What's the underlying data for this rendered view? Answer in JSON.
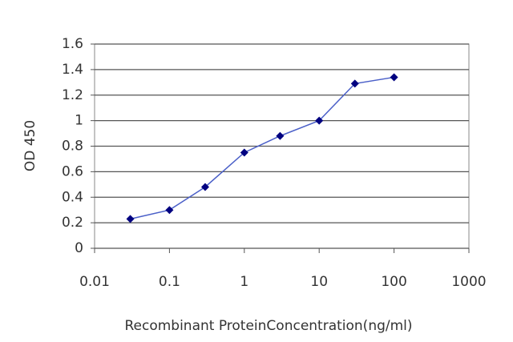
{
  "chart_data": {
    "type": "line",
    "x_label": "Recombinant ProteinConcentration(ng/ml)",
    "y_label": "OD 450",
    "x": [
      0.03,
      0.1,
      0.3,
      1,
      3,
      10,
      30,
      100
    ],
    "series": [
      {
        "color": "#000080",
        "values": [
          0.23,
          0.3,
          0.48,
          0.75,
          0.88,
          1.0,
          1.29,
          1.34
        ]
      }
    ],
    "xscale": "log",
    "xlim": [
      0.01,
      1000
    ],
    "xticks": [
      0.01,
      0.1,
      1,
      10,
      100,
      1000
    ],
    "ylim": [
      0,
      1.6
    ],
    "yticks": [
      0,
      0.2,
      0.4,
      0.6,
      0.8,
      1,
      1.2,
      1.4,
      1.6
    ],
    "grid": true
  }
}
